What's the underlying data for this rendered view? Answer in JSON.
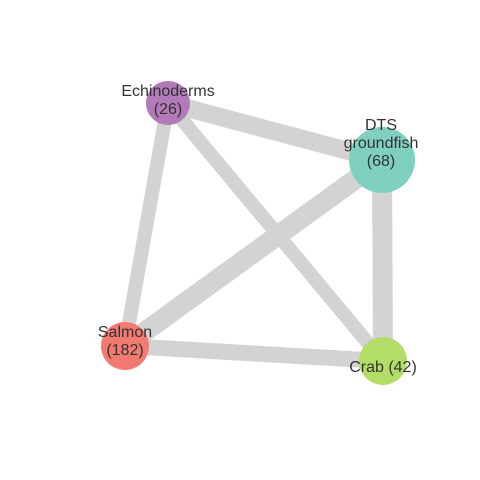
{
  "colors": {
    "edge": "#d3d3d3",
    "label": "#333333",
    "echinoderms": "#b27ab8",
    "dts_groundfish": "#80d0c0",
    "salmon": "#f27a70",
    "crab": "#b2dd66"
  },
  "nodes": [
    {
      "id": "echinoderms",
      "label_lines": [
        "Echinoderms",
        "(26)"
      ],
      "value": 26
    },
    {
      "id": "dts_groundfish",
      "label_lines": [
        "DTS",
        "groundfish",
        "(68)"
      ],
      "value": 68
    },
    {
      "id": "salmon",
      "label_lines": [
        "Salmon",
        "(182)"
      ],
      "value": 182
    },
    {
      "id": "crab",
      "label_lines": [
        "Crab (42)"
      ],
      "value": 42
    }
  ],
  "edges": [
    {
      "source": "echinoderms",
      "target": "dts_groundfish"
    },
    {
      "source": "echinoderms",
      "target": "salmon"
    },
    {
      "source": "echinoderms",
      "target": "crab"
    },
    {
      "source": "dts_groundfish",
      "target": "salmon"
    },
    {
      "source": "dts_groundfish",
      "target": "crab"
    },
    {
      "source": "salmon",
      "target": "crab"
    }
  ]
}
